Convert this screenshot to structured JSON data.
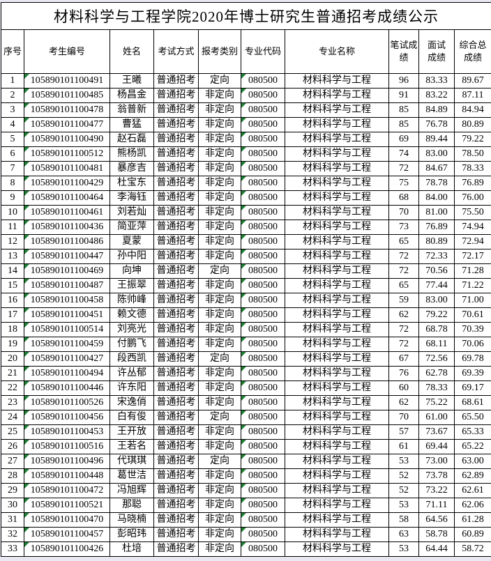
{
  "title": "材料科学与工程学院2020年博士研究生普通招考成绩公示",
  "colors": {
    "page_background": "#E9E8F2",
    "table_background": "#FFFFFF",
    "grid_border": "#000000",
    "text": "#000000",
    "flag_triangle_green": "#1E7E34"
  },
  "icons": {
    "flag_triangle": "green triangle marker in top-left corner of text-formatted cells"
  },
  "table": {
    "columns": [
      {
        "key": "seq",
        "label": "序号"
      },
      {
        "key": "candidate_no",
        "label": "考生编号",
        "flag": true
      },
      {
        "key": "name",
        "label": "姓名"
      },
      {
        "key": "exam_method",
        "label": "考试方式"
      },
      {
        "key": "category",
        "label": "报考类别"
      },
      {
        "key": "major_code",
        "label": "专业代码",
        "flag": true
      },
      {
        "key": "major_name",
        "label": "专业名称"
      },
      {
        "key": "written_score",
        "label": "笔试成\n绩"
      },
      {
        "key": "interview_score",
        "label": "面试\n成绩"
      },
      {
        "key": "total_score",
        "label": "综合总\n成绩"
      }
    ],
    "rows": [
      [
        "1",
        "105890101100491",
        "王曦",
        "普通招考",
        "定向",
        "080500",
        "材料科学与工程",
        "96",
        "83.33",
        "89.67"
      ],
      [
        "2",
        "105890101100485",
        "杨昌金",
        "普通招考",
        "非定向",
        "080500",
        "材料科学与工程",
        "91",
        "83.22",
        "87.11"
      ],
      [
        "3",
        "105890101100478",
        "翁普新",
        "普通招考",
        "非定向",
        "080500",
        "材料科学与工程",
        "85",
        "84.89",
        "84.94"
      ],
      [
        "4",
        "105890101100477",
        "曹猛",
        "普通招考",
        "非定向",
        "080500",
        "材料科学与工程",
        "85",
        "76.78",
        "80.89"
      ],
      [
        "5",
        "105890101100490",
        "赵石磊",
        "普通招考",
        "非定向",
        "080500",
        "材料科学与工程",
        "69",
        "89.44",
        "79.22"
      ],
      [
        "6",
        "105890101100512",
        "熊杨凯",
        "普通招考",
        "非定向",
        "080500",
        "材料科学与工程",
        "74",
        "83.00",
        "78.50"
      ],
      [
        "7",
        "105890101100481",
        "暴彦吉",
        "普通招考",
        "非定向",
        "080500",
        "材料科学与工程",
        "72",
        "84.67",
        "78.33"
      ],
      [
        "8",
        "105890101100429",
        "杜宝东",
        "普通招考",
        "非定向",
        "080500",
        "材料科学与工程",
        "75",
        "78.78",
        "76.89"
      ],
      [
        "9",
        "105890101100464",
        "李海钰",
        "普通招考",
        "非定向",
        "080500",
        "材料科学与工程",
        "68",
        "84.00",
        "76.00"
      ],
      [
        "10",
        "105890101100461",
        "刘若灿",
        "普通招考",
        "非定向",
        "080500",
        "材料科学与工程",
        "70",
        "81.00",
        "75.50"
      ],
      [
        "11",
        "105890101100436",
        "简亚萍",
        "普通招考",
        "非定向",
        "080500",
        "材料科学与工程",
        "73",
        "76.89",
        "74.94"
      ],
      [
        "12",
        "105890101100486",
        "夏蒙",
        "普通招考",
        "非定向",
        "080500",
        "材料科学与工程",
        "65",
        "80.89",
        "72.94"
      ],
      [
        "13",
        "105890101100447",
        "孙中阳",
        "普通招考",
        "非定向",
        "080500",
        "材料科学与工程",
        "72",
        "72.33",
        "72.17"
      ],
      [
        "14",
        "105890101100469",
        "向坤",
        "普通招考",
        "定向",
        "080500",
        "材料科学与工程",
        "72",
        "70.56",
        "71.28"
      ],
      [
        "15",
        "105890101100487",
        "王振翠",
        "普通招考",
        "非定向",
        "080500",
        "材料科学与工程",
        "65",
        "77.44",
        "71.22"
      ],
      [
        "16",
        "105890101100458",
        "陈帅峰",
        "普通招考",
        "非定向",
        "080500",
        "材料科学与工程",
        "59",
        "83.00",
        "71.00"
      ],
      [
        "17",
        "105890101100451",
        "赖文德",
        "普通招考",
        "非定向",
        "080500",
        "材料科学与工程",
        "62",
        "79.22",
        "70.61"
      ],
      [
        "18",
        "105890101100514",
        "刘亮光",
        "普通招考",
        "非定向",
        "080500",
        "材料科学与工程",
        "72",
        "68.78",
        "70.39"
      ],
      [
        "19",
        "105890101100459",
        "付鹏飞",
        "普通招考",
        "非定向",
        "080500",
        "材料科学与工程",
        "72",
        "68.11",
        "70.06"
      ],
      [
        "20",
        "105890101100427",
        "段西凯",
        "普通招考",
        "定向",
        "080500",
        "材料科学与工程",
        "67",
        "72.56",
        "69.78"
      ],
      [
        "21",
        "105890101100494",
        "许丛郁",
        "普通招考",
        "非定向",
        "080500",
        "材料科学与工程",
        "76",
        "62.78",
        "69.39"
      ],
      [
        "22",
        "105890101100446",
        "许东阳",
        "普通招考",
        "非定向",
        "080500",
        "材料科学与工程",
        "60",
        "78.33",
        "69.17"
      ],
      [
        "23",
        "105890101100526",
        "宋逸俏",
        "普通招考",
        "非定向",
        "080500",
        "材料科学与工程",
        "62",
        "75.22",
        "68.61"
      ],
      [
        "24",
        "105890101100456",
        "白有俊",
        "普通招考",
        "定向",
        "080500",
        "材料科学与工程",
        "70",
        "61.00",
        "65.50"
      ],
      [
        "25",
        "105890101100453",
        "王开放",
        "普通招考",
        "非定向",
        "080500",
        "材料科学与工程",
        "57",
        "73.67",
        "65.33"
      ],
      [
        "26",
        "105890101100516",
        "王若名",
        "普通招考",
        "非定向",
        "080500",
        "材料科学与工程",
        "61",
        "69.44",
        "65.22"
      ],
      [
        "27",
        "105890101100496",
        "代琪琪",
        "普通招考",
        "定向",
        "080500",
        "材料科学与工程",
        "53",
        "73.00",
        "63.00"
      ],
      [
        "28",
        "105890101100448",
        "葛世洁",
        "普通招考",
        "非定向",
        "080500",
        "材料科学与工程",
        "52",
        "73.78",
        "62.89"
      ],
      [
        "29",
        "105890101100472",
        "冯旭辉",
        "普通招考",
        "非定向",
        "080500",
        "材料科学与工程",
        "52",
        "73.22",
        "62.61"
      ],
      [
        "30",
        "105890101100521",
        "那聪",
        "普通招考",
        "非定向",
        "080500",
        "材料科学与工程",
        "53",
        "71.11",
        "62.06"
      ],
      [
        "31",
        "105890101100470",
        "马晓楠",
        "普通招考",
        "非定向",
        "080500",
        "材料科学与工程",
        "58",
        "64.56",
        "61.28"
      ],
      [
        "32",
        "105890101100457",
        "彭昭玮",
        "普通招考",
        "非定向",
        "080500",
        "材料科学与工程",
        "63",
        "58.78",
        "60.89"
      ],
      [
        "33",
        "105890101100426",
        "杜培",
        "普通招考",
        "非定向",
        "080500",
        "材料科学与工程",
        "53",
        "64.44",
        "58.72"
      ]
    ]
  }
}
